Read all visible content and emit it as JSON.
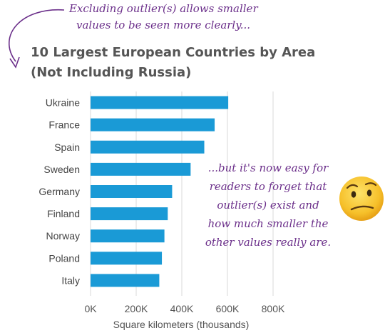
{
  "annotation_top": [
    "Excluding outlier(s) allows smaller",
    "values to be seen more clearly..."
  ],
  "annotation_right": [
    "...but it's now easy for",
    "readers to forget that",
    "outlier(s) exist and",
    "how much smaller the",
    "other values really are."
  ],
  "icons": {
    "face": "confused-face-icon",
    "arrow": "curved-arrow-icon"
  },
  "colors": {
    "bar": "#1a9ad6",
    "annotation": "#6b2f8a",
    "title": "#555555",
    "face": "#f6c02a"
  },
  "chart_data": {
    "type": "bar",
    "orientation": "horizontal",
    "title": [
      "10 Largest European Countries by Area",
      "(Not Including Russia)"
    ],
    "xlabel": "Square kilometers (thousands)",
    "ylabel": "",
    "categories": [
      "Ukraine",
      "France",
      "Spain",
      "Sweden",
      "Germany",
      "Finland",
      "Norway",
      "Poland",
      "Italy"
    ],
    "values": [
      603.5,
      543.9,
      498.5,
      438.6,
      357.6,
      338.4,
      323.8,
      312.7,
      301.3
    ],
    "xlim": [
      0,
      800
    ],
    "xticks": [
      0,
      200,
      400,
      600,
      800
    ],
    "xtick_labels": [
      "0K",
      "200K",
      "400K",
      "600K",
      "800K"
    ],
    "grid": true,
    "legend": "none"
  }
}
